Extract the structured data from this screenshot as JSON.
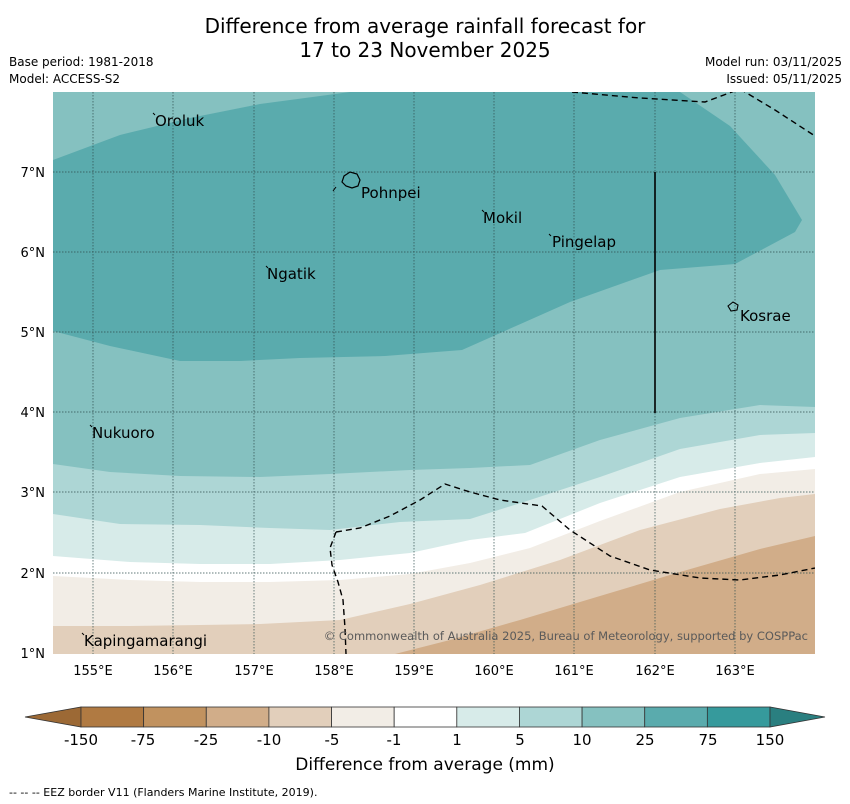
{
  "title_line1": "Difference from average rainfall forecast for",
  "title_line2": "17 to 23 November 2025",
  "meta": {
    "base_period": "Base period: 1981-2018",
    "model": "Model: ACCESS-S2",
    "model_run": "Model run: 03/11/2025",
    "issued": "Issued: 05/11/2025"
  },
  "map": {
    "lon_labels": [
      "155°E",
      "156°E",
      "157°E",
      "158°E",
      "159°E",
      "160°E",
      "161°E",
      "162°E",
      "163°E"
    ],
    "lat_labels": [
      "7°N",
      "6°N",
      "5°N",
      "4°N",
      "3°N",
      "2°N",
      "1°N"
    ],
    "places": {
      "oroluk": "Oroluk",
      "pohnpei": "Pohnpei",
      "mokil": "Mokil",
      "pingelap": "Pingelap",
      "ngatik": "Ngatik",
      "kosrae": "Kosrae",
      "nukuoro": "Nukuoro",
      "kapingamarangi": "Kapingamarangi"
    },
    "copyright": "© Commonwealth of Australia 2025, Bureau of Meteorology, supported by COSPPac"
  },
  "legend": {
    "ticks": [
      "-150",
      "-75",
      "-25",
      "-10",
      "-5",
      "-1",
      "1",
      "5",
      "10",
      "25",
      "75",
      "150"
    ],
    "colors": [
      "#b07a42",
      "#c1925f",
      "#d1ad89",
      "#e2cfbb",
      "#f2ede6",
      "#ffffff",
      "#d7ebe9",
      "#add6d5",
      "#85c1c0",
      "#5aabad",
      "#369a9c"
    ],
    "title": "Difference from average (mm)"
  },
  "footnote": "--  --  -- EEZ border V11 (Flanders Marine Institute, 2019)."
}
